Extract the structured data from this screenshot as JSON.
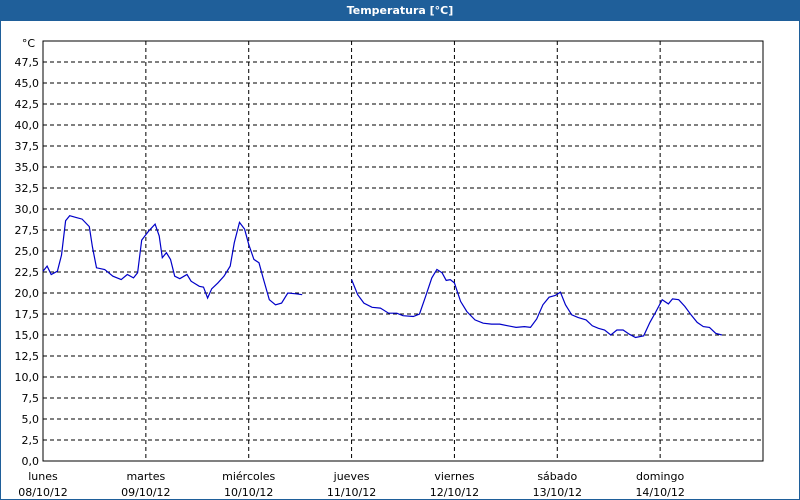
{
  "window": {
    "title": "Temperatura [°C]"
  },
  "chart_data": {
    "type": "line",
    "title": "Temperatura [°C]",
    "y_unit": "°C",
    "ylim": [
      0,
      50
    ],
    "y_ticks": [
      "0,0",
      "2,5",
      "5,0",
      "7,5",
      "10,0",
      "12,5",
      "15,0",
      "17,5",
      "20,0",
      "22,5",
      "25,0",
      "27,5",
      "30,0",
      "32,5",
      "35,0",
      "37,5",
      "40,0",
      "42,5",
      "45,0",
      "47,5"
    ],
    "x_range_days": [
      0,
      7
    ],
    "x_ticks": [
      {
        "day": "lunes",
        "date": "08/10/12"
      },
      {
        "day": "martes",
        "date": "09/10/12"
      },
      {
        "day": "miércoles",
        "date": "10/10/12"
      },
      {
        "day": "jueves",
        "date": "11/10/12"
      },
      {
        "day": "viernes",
        "date": "12/10/12"
      },
      {
        "day": "sábado",
        "date": "13/10/12"
      },
      {
        "day": "domingo",
        "date": "14/10/12"
      }
    ],
    "grid": true,
    "line_color": "#0000c8",
    "series": [
      {
        "segments": [
          [
            [
              0.0,
              22.6
            ],
            [
              0.04,
              23.2
            ],
            [
              0.08,
              22.2
            ],
            [
              0.14,
              22.6
            ],
            [
              0.18,
              24.5
            ],
            [
              0.22,
              28.6
            ],
            [
              0.26,
              29.2
            ],
            [
              0.32,
              29.0
            ],
            [
              0.38,
              28.8
            ],
            [
              0.45,
              27.9
            ],
            [
              0.48,
              25.5
            ],
            [
              0.52,
              23.0
            ],
            [
              0.6,
              22.8
            ],
            [
              0.68,
              22.0
            ],
            [
              0.76,
              21.6
            ],
            [
              0.82,
              22.2
            ],
            [
              0.88,
              21.8
            ],
            [
              0.92,
              22.4
            ],
            [
              0.96,
              26.3
            ],
            [
              1.03,
              27.4
            ],
            [
              1.09,
              28.2
            ],
            [
              1.13,
              26.8
            ],
            [
              1.16,
              24.2
            ],
            [
              1.2,
              24.8
            ],
            [
              1.24,
              24.0
            ],
            [
              1.28,
              22.0
            ],
            [
              1.33,
              21.7
            ],
            [
              1.4,
              22.2
            ],
            [
              1.44,
              21.4
            ],
            [
              1.52,
              20.8
            ],
            [
              1.56,
              20.7
            ],
            [
              1.6,
              19.4
            ],
            [
              1.64,
              20.5
            ],
            [
              1.7,
              21.2
            ],
            [
              1.76,
              22.0
            ],
            [
              1.82,
              23.2
            ],
            [
              1.86,
              26.0
            ],
            [
              1.91,
              28.4
            ],
            [
              1.96,
              27.6
            ],
            [
              2.0,
              25.8
            ],
            [
              2.05,
              24.0
            ],
            [
              2.1,
              23.6
            ],
            [
              2.14,
              21.8
            ],
            [
              2.2,
              19.2
            ],
            [
              2.26,
              18.6
            ],
            [
              2.32,
              18.8
            ],
            [
              2.38,
              20.0
            ],
            [
              2.46,
              19.9
            ],
            [
              2.52,
              19.8
            ]
          ],
          [
            [
              3.0,
              21.6
            ],
            [
              3.06,
              19.8
            ],
            [
              3.12,
              18.8
            ],
            [
              3.2,
              18.3
            ],
            [
              3.28,
              18.2
            ],
            [
              3.36,
              17.6
            ],
            [
              3.44,
              17.6
            ],
            [
              3.5,
              17.3
            ],
            [
              3.6,
              17.2
            ],
            [
              3.66,
              17.5
            ],
            [
              3.72,
              19.6
            ],
            [
              3.78,
              21.8
            ],
            [
              3.83,
              22.8
            ],
            [
              3.88,
              22.4
            ],
            [
              3.92,
              21.5
            ],
            [
              3.96,
              21.6
            ],
            [
              4.0,
              21.2
            ],
            [
              4.06,
              19.0
            ],
            [
              4.12,
              17.8
            ],
            [
              4.2,
              16.8
            ],
            [
              4.28,
              16.4
            ],
            [
              4.36,
              16.3
            ],
            [
              4.44,
              16.3
            ],
            [
              4.52,
              16.1
            ],
            [
              4.6,
              15.9
            ],
            [
              4.68,
              16.0
            ],
            [
              4.74,
              15.9
            ],
            [
              4.8,
              16.9
            ],
            [
              4.86,
              18.6
            ],
            [
              4.92,
              19.5
            ],
            [
              4.98,
              19.7
            ],
            [
              5.03,
              20.1
            ],
            [
              5.08,
              18.6
            ],
            [
              5.14,
              17.4
            ],
            [
              5.2,
              17.1
            ],
            [
              5.28,
              16.8
            ],
            [
              5.34,
              16.1
            ],
            [
              5.4,
              15.8
            ],
            [
              5.46,
              15.6
            ],
            [
              5.52,
              15.0
            ],
            [
              5.58,
              15.6
            ],
            [
              5.64,
              15.6
            ],
            [
              5.7,
              15.1
            ],
            [
              5.76,
              14.7
            ],
            [
              5.84,
              14.9
            ],
            [
              5.9,
              16.5
            ],
            [
              5.96,
              17.8
            ],
            [
              6.02,
              19.2
            ],
            [
              6.08,
              18.7
            ],
            [
              6.12,
              19.3
            ],
            [
              6.18,
              19.2
            ],
            [
              6.24,
              18.4
            ],
            [
              6.3,
              17.4
            ],
            [
              6.36,
              16.5
            ],
            [
              6.42,
              16.0
            ],
            [
              6.48,
              15.9
            ],
            [
              6.54,
              15.2
            ],
            [
              6.6,
              15.0
            ]
          ]
        ]
      }
    ]
  }
}
